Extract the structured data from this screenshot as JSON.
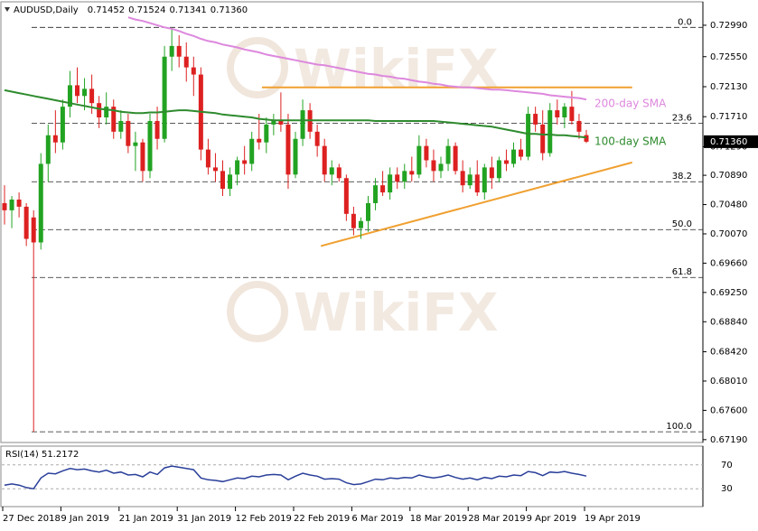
{
  "chart_data": {
    "type": "candlestick",
    "title": "AUDUSD,Daily",
    "header_prices": [
      "0.71452",
      "0.71524",
      "0.71341",
      "0.71360"
    ],
    "watermark": "WikiFX",
    "categories": [
      "27 Dec 2018",
      null,
      null,
      null,
      null,
      null,
      null,
      null,
      "9 Jan 2019",
      null,
      null,
      null,
      null,
      null,
      null,
      null,
      "21 Jan 2019",
      null,
      null,
      null,
      null,
      null,
      null,
      null,
      "31 Jan 2019",
      null,
      null,
      null,
      null,
      null,
      null,
      null,
      "12 Feb 2019",
      null,
      null,
      null,
      null,
      null,
      null,
      null,
      "22 Feb 2019",
      null,
      null,
      null,
      null,
      null,
      null,
      null,
      "6 Mar 2019",
      null,
      null,
      null,
      null,
      null,
      null,
      null,
      "18 Mar 2019",
      null,
      null,
      null,
      null,
      null,
      null,
      null,
      "28 Mar 2019",
      null,
      null,
      null,
      null,
      null,
      null,
      null,
      "9 Apr 2019",
      null,
      null,
      null,
      null,
      null,
      null,
      null,
      "19 Apr 2019"
    ],
    "up_color": "#22a322",
    "down_color": "#dd2020",
    "ohlc": {
      "open": [
        0.705,
        0.704,
        0.7055,
        0.7045,
        0.703,
        0.6995,
        0.7105,
        0.7145,
        0.7135,
        0.7185,
        0.7215,
        0.72,
        0.721,
        0.719,
        0.717,
        0.7185,
        0.715,
        0.7165,
        0.713,
        0.7135,
        0.7095,
        0.7165,
        0.714,
        0.7255,
        0.727,
        0.7255,
        0.724,
        0.723,
        0.7125,
        0.71,
        0.7095,
        0.707,
        0.709,
        0.711,
        0.7105,
        0.714,
        0.7135,
        0.716,
        0.7165,
        0.716,
        0.709,
        0.714,
        0.718,
        0.715,
        0.713,
        0.709,
        0.71,
        0.7085,
        0.7035,
        0.7015,
        0.7025,
        0.705,
        0.7075,
        0.7065,
        0.709,
        0.708,
        0.7095,
        0.709,
        0.713,
        0.711,
        0.7095,
        0.7105,
        0.713,
        0.7095,
        0.7075,
        0.709,
        0.7065,
        0.71,
        0.7085,
        0.711,
        0.7105,
        0.7125,
        0.7115,
        0.7175,
        0.716,
        0.712,
        0.718,
        0.717,
        0.7185,
        0.7165,
        0.71452
      ],
      "high": [
        0.7075,
        0.706,
        0.7065,
        0.705,
        0.704,
        0.712,
        0.716,
        0.718,
        0.7195,
        0.7235,
        0.724,
        0.7225,
        0.723,
        0.72,
        0.7205,
        0.7195,
        0.718,
        0.7175,
        0.715,
        0.714,
        0.7175,
        0.7185,
        0.727,
        0.7296,
        0.7285,
        0.7275,
        0.7255,
        0.724,
        0.714,
        0.712,
        0.711,
        0.71,
        0.7115,
        0.713,
        0.715,
        0.7175,
        0.717,
        0.7175,
        0.7205,
        0.7175,
        0.715,
        0.7195,
        0.719,
        0.716,
        0.714,
        0.711,
        0.7105,
        0.709,
        0.7045,
        0.703,
        0.706,
        0.7085,
        0.7095,
        0.71,
        0.71,
        0.7105,
        0.7115,
        0.7145,
        0.714,
        0.7125,
        0.7115,
        0.714,
        0.7135,
        0.711,
        0.71,
        0.711,
        0.7105,
        0.7115,
        0.7115,
        0.7125,
        0.7135,
        0.714,
        0.7185,
        0.7185,
        0.718,
        0.719,
        0.7195,
        0.719,
        0.7207,
        0.7175,
        0.71524
      ],
      "low": [
        0.702,
        0.7015,
        0.703,
        0.699,
        0.673,
        0.6985,
        0.708,
        0.712,
        0.7125,
        0.717,
        0.719,
        0.718,
        0.7175,
        0.7155,
        0.716,
        0.714,
        0.714,
        0.712,
        0.7095,
        0.708,
        0.7085,
        0.7125,
        0.7135,
        0.7235,
        0.724,
        0.722,
        0.72,
        0.711,
        0.709,
        0.708,
        0.706,
        0.706,
        0.7075,
        0.709,
        0.7095,
        0.7125,
        0.712,
        0.7145,
        0.715,
        0.707,
        0.7085,
        0.713,
        0.714,
        0.7115,
        0.708,
        0.7075,
        0.708,
        0.7025,
        0.7005,
        0.7,
        0.701,
        0.704,
        0.706,
        0.7055,
        0.707,
        0.707,
        0.708,
        0.7085,
        0.71,
        0.708,
        0.7085,
        0.7095,
        0.709,
        0.7065,
        0.707,
        0.706,
        0.7055,
        0.707,
        0.708,
        0.7095,
        0.71,
        0.711,
        0.711,
        0.715,
        0.711,
        0.7115,
        0.716,
        0.7155,
        0.716,
        0.714,
        0.71341
      ],
      "close": [
        0.704,
        0.7055,
        0.7045,
        0.7,
        0.6995,
        0.7105,
        0.7145,
        0.7135,
        0.7185,
        0.7215,
        0.72,
        0.721,
        0.719,
        0.717,
        0.7185,
        0.715,
        0.7165,
        0.713,
        0.7135,
        0.7095,
        0.7165,
        0.714,
        0.7255,
        0.727,
        0.7255,
        0.724,
        0.723,
        0.7125,
        0.71,
        0.7095,
        0.707,
        0.709,
        0.711,
        0.7105,
        0.714,
        0.7135,
        0.716,
        0.7165,
        0.716,
        0.709,
        0.714,
        0.718,
        0.715,
        0.713,
        0.709,
        0.71,
        0.7085,
        0.7035,
        0.7015,
        0.7025,
        0.705,
        0.7075,
        0.7065,
        0.709,
        0.708,
        0.7095,
        0.709,
        0.713,
        0.711,
        0.7095,
        0.7105,
        0.713,
        0.7095,
        0.7075,
        0.709,
        0.7065,
        0.71,
        0.7085,
        0.711,
        0.7105,
        0.7125,
        0.7115,
        0.7175,
        0.716,
        0.712,
        0.718,
        0.717,
        0.7185,
        0.7165,
        0.715,
        0.7136
      ]
    },
    "overlays": [
      {
        "name": "200-day SMA",
        "color": "#dd88dd",
        "values": [
          null,
          null,
          null,
          null,
          null,
          null,
          null,
          null,
          null,
          null,
          null,
          null,
          null,
          null,
          null,
          null,
          null,
          0.731,
          0.7307,
          0.7305,
          0.7302,
          0.7299,
          0.7296,
          0.7294,
          0.7291,
          0.7287,
          0.7284,
          0.728,
          0.7277,
          0.7275,
          0.7272,
          0.727,
          0.7268,
          0.7265,
          0.7263,
          0.7261,
          0.7258,
          0.7256,
          0.7254,
          0.7252,
          0.725,
          0.7248,
          0.7246,
          0.7244,
          0.7243,
          0.7241,
          0.7239,
          0.7237,
          0.7235,
          0.7233,
          0.7231,
          0.723,
          0.7228,
          0.7227,
          0.7225,
          0.7224,
          0.7222,
          0.722,
          0.7219,
          0.7217,
          0.7216,
          0.7214,
          0.7213,
          0.7212,
          0.7212,
          0.7211,
          0.721,
          0.7209,
          0.7209,
          0.7208,
          0.7207,
          0.7206,
          0.7205,
          0.7204,
          0.7203,
          0.7201,
          0.72,
          0.7199,
          0.7198,
          0.7197,
          0.7195
        ]
      },
      {
        "name": "100-day SMA",
        "color": "#2e8b2e",
        "values": [
          0.7208,
          0.7206,
          0.7204,
          0.7202,
          0.72,
          0.7198,
          0.7196,
          0.7194,
          0.7192,
          0.719,
          0.7188,
          0.7186,
          0.7184,
          0.7182,
          0.7181,
          0.718,
          0.7178,
          0.7177,
          0.7176,
          0.7176,
          0.7177,
          0.7177,
          0.7178,
          0.7179,
          0.718,
          0.718,
          0.7179,
          0.7178,
          0.7177,
          0.7176,
          0.7174,
          0.7173,
          0.7172,
          0.7171,
          0.717,
          0.7168,
          0.7167,
          0.7166,
          0.7166,
          0.7166,
          0.7166,
          0.7166,
          0.7166,
          0.7166,
          0.7166,
          0.7166,
          0.7166,
          0.7166,
          0.7166,
          0.7166,
          0.7166,
          0.7165,
          0.7165,
          0.7165,
          0.7165,
          0.7165,
          0.7165,
          0.7165,
          0.7165,
          0.7165,
          0.7164,
          0.7163,
          0.7162,
          0.7161,
          0.716,
          0.7159,
          0.7158,
          0.7157,
          0.7155,
          0.7153,
          0.7151,
          0.7149,
          0.7147,
          0.7147,
          0.7146,
          0.7146,
          0.7145,
          0.7145,
          0.7144,
          0.7143,
          0.7142
        ]
      }
    ],
    "trend_lines": [
      {
        "color": "#f0a030",
        "x": [
          35.4,
          86.3
        ],
        "y": [
          0.7212,
          0.7212
        ]
      },
      {
        "color": "#f0a030",
        "x": [
          43.5,
          86.3
        ],
        "y": [
          0.699,
          0.7107
        ]
      }
    ],
    "fib_levels": [
      {
        "value": 0.7296,
        "label": "0.0"
      },
      {
        "value": 0.7162,
        "label": "23.6"
      },
      {
        "value": 0.708,
        "label": "38.2"
      },
      {
        "value": 0.7013,
        "label": "50.0"
      },
      {
        "value": 0.6946,
        "label": "61.8"
      },
      {
        "value": 0.673,
        "label": "100.0"
      }
    ],
    "ylim": [
      0.6715,
      0.7328
    ],
    "yticks": [
      {
        "value": 0.7299,
        "label": "0.72990"
      },
      {
        "value": 0.7255,
        "label": "0.72550"
      },
      {
        "value": 0.7213,
        "label": "0.72130"
      },
      {
        "value": 0.7171,
        "label": "0.71710"
      },
      {
        "value": 0.7129,
        "label": "0.71290"
      },
      {
        "value": 0.7089,
        "label": "0.70890"
      },
      {
        "value": 0.7048,
        "label": "0.70480"
      },
      {
        "value": 0.7007,
        "label": "0.70070"
      },
      {
        "value": 0.6966,
        "label": "0.69660"
      },
      {
        "value": 0.6925,
        "label": "0.69250"
      },
      {
        "value": 0.6884,
        "label": "0.68840"
      },
      {
        "value": 0.6842,
        "label": "0.68420"
      },
      {
        "value": 0.6801,
        "label": "0.68010"
      },
      {
        "value": 0.676,
        "label": "0.67600"
      },
      {
        "value": 0.6719,
        "label": "0.67190"
      }
    ],
    "price_marker": {
      "value": 0.7136,
      "label": "0.71360"
    },
    "rsi": {
      "title": "RSI(14) 51.2172",
      "color": "#2a3f9a",
      "ylim": [
        0,
        100
      ],
      "yticks": [
        70,
        30
      ],
      "values": [
        36,
        38,
        36,
        32,
        30,
        48,
        56,
        55,
        60,
        64,
        62,
        63,
        60,
        58,
        61,
        56,
        58,
        53,
        54,
        50,
        58,
        54,
        65,
        68,
        66,
        64,
        62,
        48,
        45,
        44,
        42,
        45,
        48,
        47,
        51,
        50,
        53,
        54,
        53,
        45,
        51,
        56,
        53,
        51,
        46,
        47,
        46,
        40,
        37,
        38,
        42,
        46,
        45,
        48,
        47,
        49,
        48,
        53,
        50,
        48,
        50,
        53,
        49,
        46,
        48,
        45,
        49,
        47,
        51,
        50,
        53,
        52,
        59,
        57,
        52,
        58,
        57,
        59,
        56,
        54,
        51.2172
      ]
    }
  }
}
